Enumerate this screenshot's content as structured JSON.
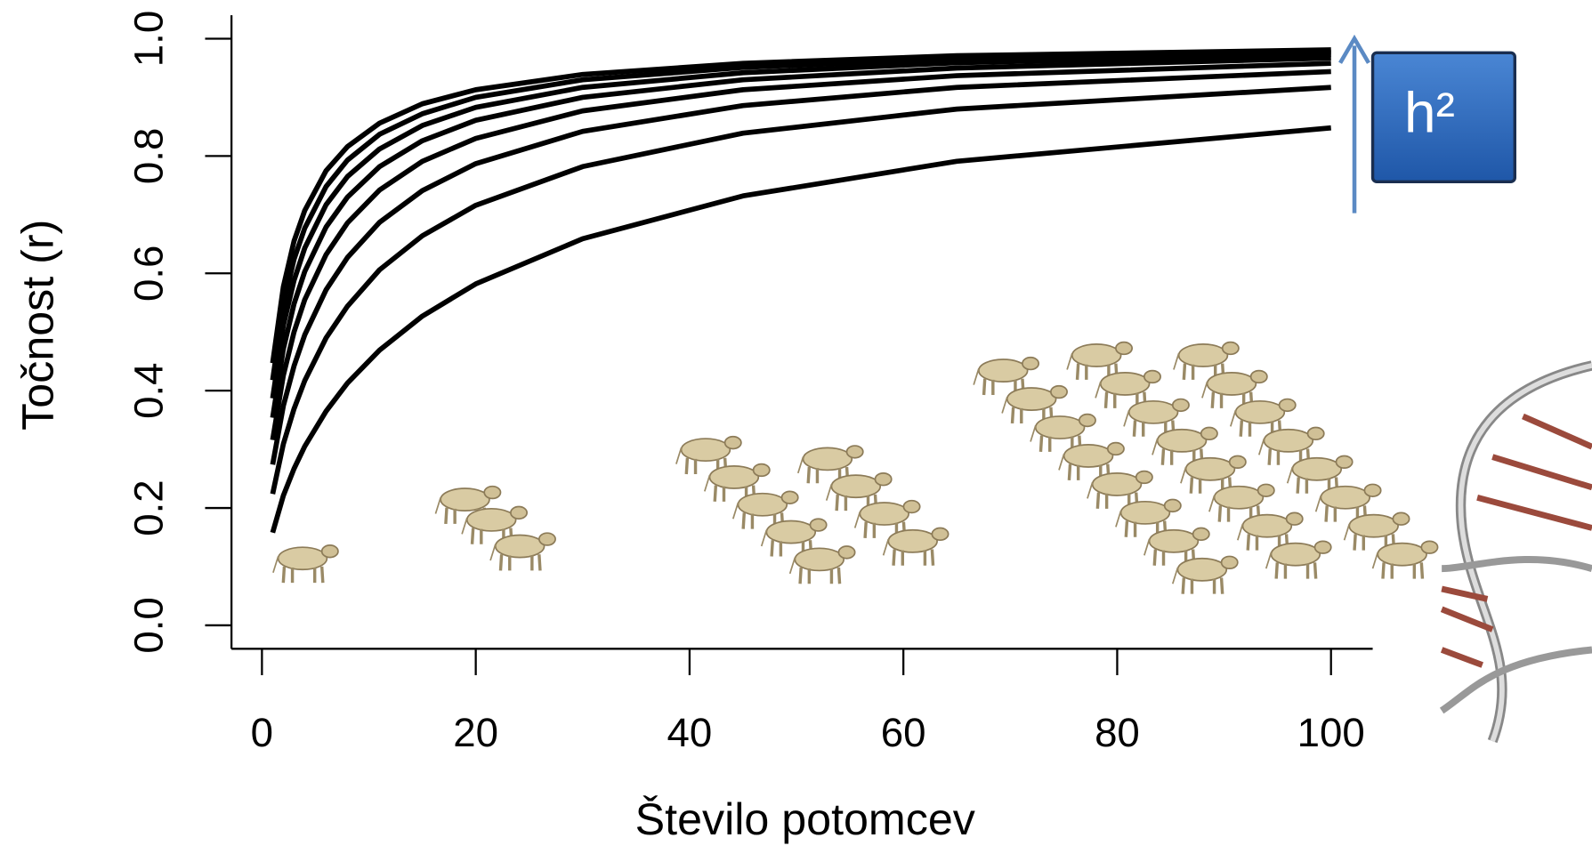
{
  "chart_data": {
    "type": "line",
    "x_label": "Število potomcev",
    "y_label": "Točnost (r)",
    "annotation": "h²",
    "x": [
      1,
      2,
      3,
      4,
      6,
      8,
      11,
      15,
      20,
      30,
      45,
      65,
      100
    ],
    "series": [
      {
        "color": "#000000",
        "values": [
          0.158,
          0.221,
          0.267,
          0.305,
          0.365,
          0.413,
          0.469,
          0.527,
          0.582,
          0.659,
          0.732,
          0.791,
          0.848
        ]
      },
      {
        "color": "#000000",
        "values": [
          0.224,
          0.309,
          0.369,
          0.417,
          0.49,
          0.544,
          0.606,
          0.664,
          0.716,
          0.782,
          0.839,
          0.88,
          0.917
        ]
      },
      {
        "color": "#000000",
        "values": [
          0.274,
          0.374,
          0.442,
          0.495,
          0.572,
          0.627,
          0.687,
          0.741,
          0.787,
          0.842,
          0.886,
          0.917,
          0.944
        ]
      },
      {
        "color": "#000000",
        "values": [
          0.316,
          0.426,
          0.5,
          0.555,
          0.632,
          0.686,
          0.742,
          0.791,
          0.83,
          0.877,
          0.913,
          0.937,
          0.958
        ]
      },
      {
        "color": "#000000",
        "values": [
          0.354,
          0.471,
          0.548,
          0.603,
          0.679,
          0.73,
          0.782,
          0.826,
          0.861,
          0.9,
          0.93,
          0.95,
          0.967
        ]
      },
      {
        "color": "#000000",
        "values": [
          0.387,
          0.511,
          0.588,
          0.643,
          0.717,
          0.765,
          0.812,
          0.852,
          0.883,
          0.917,
          0.942,
          0.959,
          0.973
        ]
      },
      {
        "color": "#000000",
        "values": [
          0.418,
          0.546,
          0.624,
          0.677,
          0.748,
          0.793,
          0.837,
          0.872,
          0.9,
          0.93,
          0.951,
          0.966,
          0.977
        ]
      },
      {
        "color": "#000000",
        "values": [
          0.447,
          0.577,
          0.655,
          0.707,
          0.775,
          0.816,
          0.856,
          0.889,
          0.913,
          0.939,
          0.958,
          0.971,
          0.981
        ]
      }
    ],
    "xlim": [
      -2.85,
      103.9
    ],
    "ylim": [
      -0.04,
      1.04
    ],
    "xticks": [
      0,
      20,
      40,
      60,
      80,
      100
    ],
    "yticks": [
      {
        "value": 0,
        "label": "0.0"
      },
      0.2,
      0.4,
      0.6,
      0.8,
      {
        "value": 1,
        "label": "1.0"
      }
    ],
    "grid": false
  }
}
